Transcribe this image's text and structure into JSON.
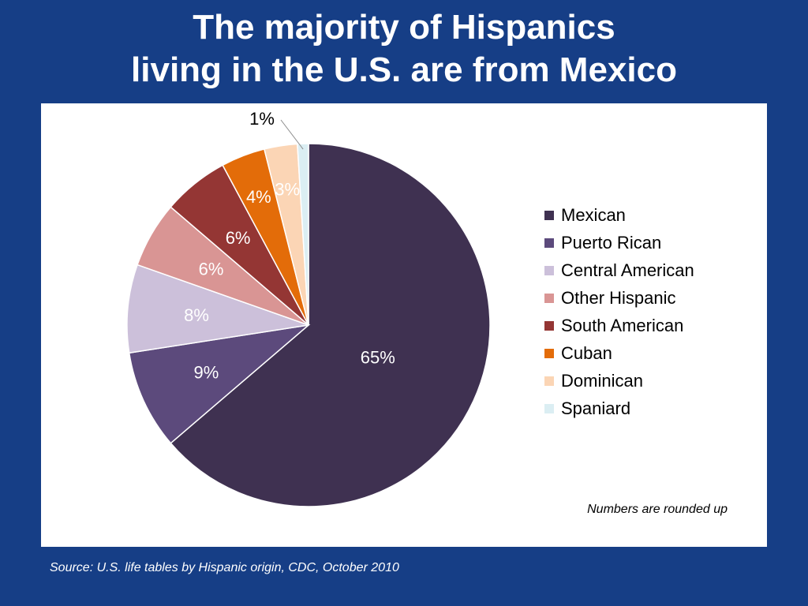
{
  "slide": {
    "title_line1": "The majority of Hispanics",
    "title_line2": "living in the U.S. are from Mexico",
    "footnote": "Numbers are rounded up",
    "source": "Source: U.S. life tables by Hispanic origin, CDC, October 2010"
  },
  "chart_data": {
    "type": "pie",
    "title": "",
    "start_angle_deg": 0,
    "direction": "clockwise",
    "legend_position": "right",
    "slices": [
      {
        "name": "Mexican",
        "value": 65,
        "label": "65%",
        "color": "#3f3151",
        "label_color": "#ffffff"
      },
      {
        "name": "Puerto Rican",
        "value": 9,
        "label": "9%",
        "color": "#5c4a7c",
        "label_color": "#ffffff"
      },
      {
        "name": "Central American",
        "value": 8,
        "label": "8%",
        "color": "#ccc0da",
        "label_color": "#ffffff"
      },
      {
        "name": "Other Hispanic",
        "value": 6,
        "label": "6%",
        "color": "#d99594",
        "label_color": "#ffffff"
      },
      {
        "name": "South American",
        "value": 6,
        "label": "6%",
        "color": "#943634",
        "label_color": "#ffffff"
      },
      {
        "name": "Cuban",
        "value": 4,
        "label": "4%",
        "color": "#e36c09",
        "label_color": "#ffffff"
      },
      {
        "name": "Dominican",
        "value": 3,
        "label": "3%",
        "color": "#fbd5b5",
        "label_color": "#ffffff"
      },
      {
        "name": "Spaniard",
        "value": 1,
        "label": "1%",
        "color": "#dbeef3",
        "label_color": "#000000",
        "label_outside": true
      }
    ]
  }
}
